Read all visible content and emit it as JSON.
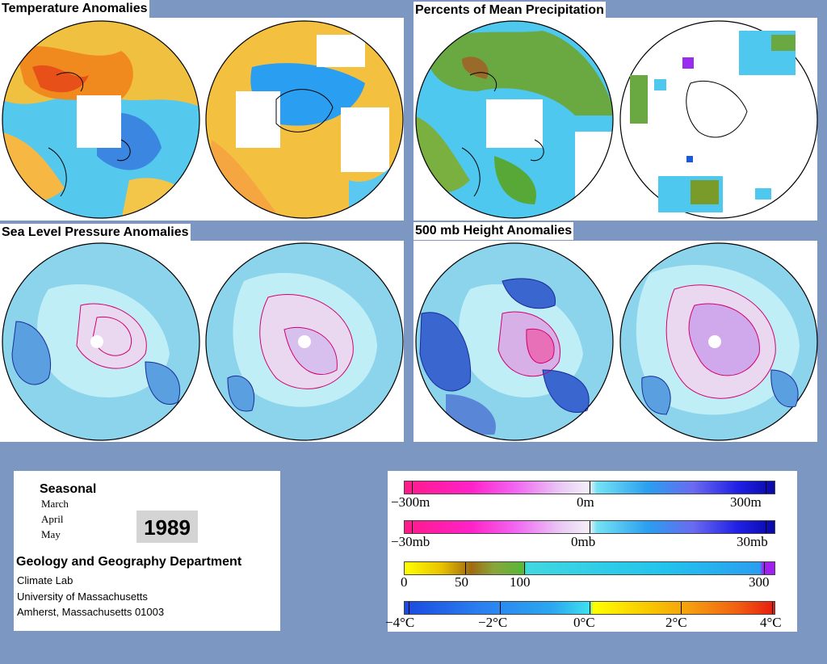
{
  "panels": {
    "temperature": {
      "title": "Temperature Anomalies"
    },
    "precipitation": {
      "title": "Percents of Mean Precipitation"
    },
    "sea_level_pressure": {
      "title": "Sea Level Pressure Anomalies"
    },
    "height_500mb": {
      "title": "500 mb Height Anomalies"
    }
  },
  "info": {
    "seasonal": "Seasonal",
    "months": [
      "March",
      "April",
      "May"
    ],
    "year": "1989",
    "department": "Geology and Geography Department",
    "lines": [
      "Climate Lab",
      "University of Massachusetts",
      "Amherst, Massachusetts 01003"
    ]
  },
  "legend": {
    "height": {
      "min": "−300m",
      "mid": "0m",
      "max": "300m"
    },
    "pressure": {
      "min": "−30mb",
      "mid": "0mb",
      "max": "30mb"
    },
    "precip": {
      "l0": "0",
      "l1": "50",
      "l2": "100",
      "l3": "300"
    },
    "temp": {
      "l0": "−4°C",
      "l1": "−2°C",
      "l2": "0°C",
      "l3": "2°C",
      "l4": "4°C"
    }
  },
  "colors": {
    "background": "#7b97c2",
    "warm": "#f08a1e",
    "cool": "#1aa0e6",
    "pale_cyan": "#bfeef6",
    "light_blue": "#8cd3ec",
    "positive_contour": "#d4006e",
    "negative_contour": "#1a2a9a"
  }
}
